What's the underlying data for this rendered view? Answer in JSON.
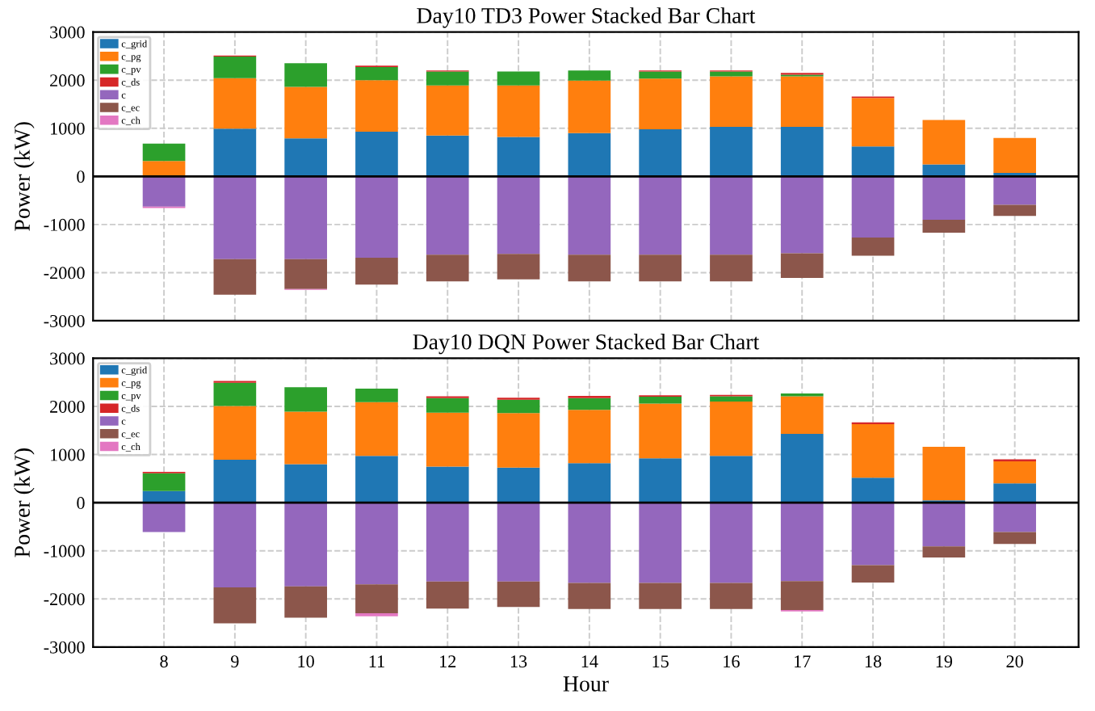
{
  "chart_data": [
    {
      "type": "bar",
      "stacked": true,
      "title": "Day10 TD3 Power Stacked Bar Chart",
      "ylabel": "Power (kW)",
      "categories": [
        "8",
        "9",
        "10",
        "11",
        "12",
        "13",
        "14",
        "15",
        "16",
        "17",
        "18",
        "19",
        "20"
      ],
      "series": [
        {
          "name": "c_grid",
          "color": "#1f77b4",
          "values": [
            0,
            990,
            790,
            930,
            850,
            820,
            900,
            980,
            1030,
            1030,
            620,
            250,
            70
          ]
        },
        {
          "name": "c_pg",
          "color": "#ff7f0e",
          "values": [
            320,
            1050,
            1070,
            1070,
            1040,
            1070,
            1090,
            1050,
            1050,
            1050,
            1010,
            920,
            730
          ]
        },
        {
          "name": "c_pv",
          "color": "#2ca02c",
          "values": [
            360,
            450,
            490,
            270,
            290,
            290,
            210,
            150,
            100,
            30,
            0,
            0,
            0
          ]
        },
        {
          "name": "c_ds",
          "color": "#d62728",
          "values": [
            0,
            20,
            0,
            30,
            20,
            0,
            0,
            20,
            20,
            40,
            30,
            0,
            0
          ]
        },
        {
          "name": "c",
          "color": "#9467bd",
          "values": [
            -630,
            -1720,
            -1720,
            -1690,
            -1630,
            -1610,
            -1630,
            -1630,
            -1630,
            -1600,
            -1270,
            -900,
            -590
          ]
        },
        {
          "name": "c_ec",
          "color": "#8c564b",
          "values": [
            0,
            -740,
            -620,
            -560,
            -550,
            -530,
            -550,
            -550,
            -550,
            -510,
            -380,
            -270,
            -230
          ]
        },
        {
          "name": "c_ch",
          "color": "#e377c2",
          "values": [
            -30,
            0,
            -20,
            0,
            0,
            0,
            0,
            0,
            0,
            0,
            0,
            0,
            0
          ]
        }
      ],
      "ylim": [
        -3000,
        3000
      ],
      "yticks": [
        -3000,
        -2000,
        -1000,
        0,
        1000,
        2000,
        3000
      ],
      "grid": true,
      "legend": "top left",
      "tick_labels": "y",
      "ref_lines": [
        {
          "axis": "y",
          "value": 0,
          "color": "#000000"
        }
      ]
    },
    {
      "type": "bar",
      "stacked": true,
      "title": "Day10 DQN Power Stacked Bar Chart",
      "ylabel": "Power (kW)",
      "xlabel": "Hour",
      "categories": [
        "8",
        "9",
        "10",
        "11",
        "12",
        "13",
        "14",
        "15",
        "16",
        "17",
        "18",
        "19",
        "20"
      ],
      "series": [
        {
          "name": "c_grid",
          "color": "#1f77b4",
          "values": [
            240,
            890,
            800,
            970,
            750,
            730,
            820,
            920,
            970,
            1430,
            520,
            50,
            400
          ]
        },
        {
          "name": "c_pg",
          "color": "#ff7f0e",
          "values": [
            0,
            1120,
            1090,
            1120,
            1120,
            1130,
            1110,
            1140,
            1130,
            780,
            1110,
            1110,
            460
          ]
        },
        {
          "name": "c_pv",
          "color": "#2ca02c",
          "values": [
            370,
            480,
            510,
            280,
            300,
            280,
            240,
            140,
            110,
            60,
            0,
            0,
            0
          ]
        },
        {
          "name": "c_ds",
          "color": "#d62728",
          "values": [
            30,
            40,
            0,
            0,
            40,
            40,
            50,
            30,
            30,
            0,
            40,
            0,
            40
          ]
        },
        {
          "name": "c",
          "color": "#9467bd",
          "values": [
            -610,
            -1760,
            -1740,
            -1700,
            -1640,
            -1640,
            -1670,
            -1670,
            -1670,
            -1630,
            -1300,
            -910,
            -610
          ]
        },
        {
          "name": "c_ec",
          "color": "#8c564b",
          "values": [
            0,
            -750,
            -650,
            -600,
            -560,
            -530,
            -540,
            -540,
            -540,
            -600,
            -360,
            -230,
            -250
          ]
        },
        {
          "name": "c_ch",
          "color": "#e377c2",
          "values": [
            0,
            0,
            0,
            -60,
            0,
            0,
            0,
            0,
            0,
            -30,
            0,
            0,
            0
          ]
        }
      ],
      "ylim": [
        -3000,
        3000
      ],
      "yticks": [
        -3000,
        -2000,
        -1000,
        0,
        1000,
        2000,
        3000
      ],
      "grid": true,
      "legend": "top left",
      "ref_lines": [
        {
          "axis": "y",
          "value": 0,
          "color": "#000000"
        }
      ]
    }
  ]
}
